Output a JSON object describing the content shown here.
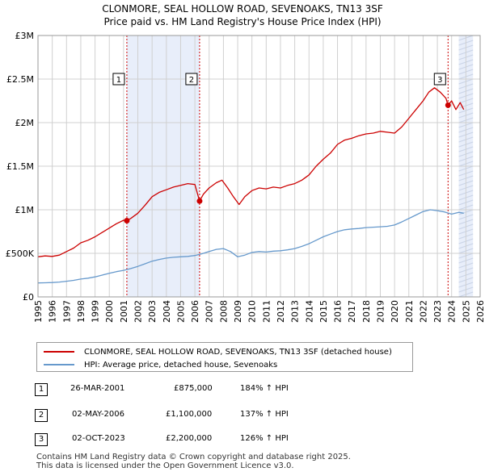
{
  "title_line1": "CLONMORE, SEAL HOLLOW ROAD, SEVENOAKS, TN13 3SF",
  "title_line2": "Price paid vs. HM Land Registry's House Price Index (HPI)",
  "chart_data": {
    "type": "line",
    "title": "CLONMORE, SEAL HOLLOW ROAD, SEVENOAKS, TN13 3SF",
    "subtitle": "Price paid vs. HM Land Registry's House Price Index (HPI)",
    "xlabel": "",
    "ylabel": "",
    "xlim": [
      1995,
      2026
    ],
    "ylim": [
      0,
      3000000
    ],
    "y_ticks": [
      {
        "value": 0,
        "label": "£0"
      },
      {
        "value": 500000,
        "label": "£500K"
      },
      {
        "value": 1000000,
        "label": "£1M"
      },
      {
        "value": 1500000,
        "label": "£1.5M"
      },
      {
        "value": 2000000,
        "label": "£2M"
      },
      {
        "value": 2500000,
        "label": "£2.5M"
      },
      {
        "value": 3000000,
        "label": "£3M"
      }
    ],
    "x_ticks": [
      "1995",
      "1996",
      "1997",
      "1998",
      "1999",
      "2000",
      "2001",
      "2002",
      "2003",
      "2004",
      "2005",
      "2006",
      "2007",
      "2008",
      "2009",
      "2010",
      "2011",
      "2012",
      "2013",
      "2014",
      "2015",
      "2016",
      "2017",
      "2018",
      "2019",
      "2020",
      "2021",
      "2022",
      "2023",
      "2024",
      "2025",
      "2026"
    ],
    "grid": true,
    "shaded_ranges": [
      {
        "x0": 2001.23,
        "x1": 2006.33
      },
      {
        "x0": 2024.5,
        "x1": 2025.5
      }
    ],
    "series": [
      {
        "name": "CLONMORE, SEAL HOLLOW ROAD, SEVENOAKS, TN13 3SF (detached house)",
        "color": "#cc0000",
        "x": [
          1995.0,
          1995.5,
          1996.0,
          1996.5,
          1997.0,
          1997.5,
          1998.0,
          1998.5,
          1999.0,
          1999.5,
          2000.0,
          2000.5,
          2001.0,
          2001.23,
          2001.5,
          2002.0,
          2002.5,
          2003.0,
          2003.5,
          2004.0,
          2004.5,
          2005.0,
          2005.5,
          2006.0,
          2006.33,
          2006.6,
          2007.0,
          2007.5,
          2007.9,
          2008.3,
          2008.7,
          2009.1,
          2009.5,
          2010.0,
          2010.5,
          2011.0,
          2011.5,
          2012.0,
          2012.5,
          2013.0,
          2013.5,
          2014.0,
          2014.5,
          2015.0,
          2015.5,
          2016.0,
          2016.5,
          2017.0,
          2017.5,
          2018.0,
          2018.5,
          2019.0,
          2019.5,
          2020.0,
          2020.5,
          2021.0,
          2021.5,
          2022.0,
          2022.4,
          2022.8,
          2023.2,
          2023.6,
          2023.75,
          2024.0,
          2024.3,
          2024.6,
          2024.85
        ],
        "values": [
          460000,
          470000,
          465000,
          480000,
          520000,
          560000,
          620000,
          650000,
          690000,
          740000,
          790000,
          840000,
          880000,
          875000,
          900000,
          960000,
          1050000,
          1150000,
          1200000,
          1230000,
          1260000,
          1280000,
          1300000,
          1290000,
          1100000,
          1180000,
          1250000,
          1310000,
          1340000,
          1250000,
          1150000,
          1060000,
          1150000,
          1220000,
          1250000,
          1240000,
          1260000,
          1250000,
          1280000,
          1300000,
          1340000,
          1400000,
          1500000,
          1580000,
          1650000,
          1750000,
          1800000,
          1820000,
          1850000,
          1870000,
          1880000,
          1900000,
          1890000,
          1880000,
          1950000,
          2050000,
          2150000,
          2250000,
          2350000,
          2400000,
          2350000,
          2280000,
          2200000,
          2250000,
          2150000,
          2230000,
          2150000
        ]
      },
      {
        "name": "HPI: Average price, detached house, Sevenoaks",
        "color": "#6699cc",
        "x": [
          1995.0,
          1995.5,
          1996.0,
          1996.5,
          1997.0,
          1997.5,
          1998.0,
          1998.5,
          1999.0,
          1999.5,
          2000.0,
          2000.5,
          2001.0,
          2001.5,
          2002.0,
          2002.5,
          2003.0,
          2003.5,
          2004.0,
          2004.5,
          2005.0,
          2005.5,
          2006.0,
          2006.5,
          2007.0,
          2007.5,
          2008.0,
          2008.5,
          2009.0,
          2009.5,
          2010.0,
          2010.5,
          2011.0,
          2011.5,
          2012.0,
          2012.5,
          2013.0,
          2013.5,
          2014.0,
          2014.5,
          2015.0,
          2015.5,
          2016.0,
          2016.5,
          2017.0,
          2017.5,
          2018.0,
          2018.5,
          2019.0,
          2019.5,
          2020.0,
          2020.5,
          2021.0,
          2021.5,
          2022.0,
          2022.5,
          2023.0,
          2023.5,
          2024.0,
          2024.5,
          2024.85
        ],
        "values": [
          160000,
          162000,
          165000,
          170000,
          180000,
          190000,
          205000,
          215000,
          230000,
          250000,
          270000,
          290000,
          305000,
          325000,
          350000,
          380000,
          410000,
          430000,
          445000,
          455000,
          460000,
          465000,
          475000,
          495000,
          520000,
          545000,
          555000,
          520000,
          460000,
          480000,
          510000,
          520000,
          515000,
          525000,
          530000,
          540000,
          555000,
          580000,
          610000,
          650000,
          690000,
          720000,
          750000,
          770000,
          780000,
          785000,
          795000,
          800000,
          805000,
          810000,
          825000,
          860000,
          900000,
          940000,
          980000,
          1000000,
          990000,
          975000,
          950000,
          970000,
          960000
        ]
      }
    ],
    "markers": [
      {
        "label": "1",
        "x": 2001.23,
        "value": 875000
      },
      {
        "label": "2",
        "x": 2006.33,
        "value": 1100000
      },
      {
        "label": "3",
        "x": 2023.75,
        "value": 2200000
      }
    ]
  },
  "legend": {
    "items": [
      {
        "label": "CLONMORE, SEAL HOLLOW ROAD, SEVENOAKS, TN13 3SF (detached house)",
        "color": "#cc0000"
      },
      {
        "label": "HPI: Average price, detached house, Sevenoaks",
        "color": "#6699cc"
      }
    ]
  },
  "transactions": [
    {
      "num": "1",
      "date": "26-MAR-2001",
      "price": "£875,000",
      "hpi": "184% ↑ HPI"
    },
    {
      "num": "2",
      "date": "02-MAY-2006",
      "price": "£1,100,000",
      "hpi": "137% ↑ HPI"
    },
    {
      "num": "3",
      "date": "02-OCT-2023",
      "price": "£2,200,000",
      "hpi": "126% ↑ HPI"
    }
  ],
  "footer": {
    "line1": "Contains HM Land Registry data © Crown copyright and database right 2025.",
    "line2": "This data is licensed under the Open Government Licence v3.0."
  }
}
